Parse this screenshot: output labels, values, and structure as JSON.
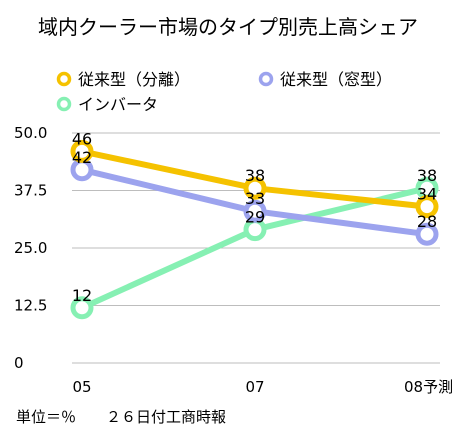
{
  "chart_data": {
    "type": "line",
    "title": "域内クーラー市場のタイプ別売上高シェア",
    "categories": [
      "05",
      "07",
      "08予測"
    ],
    "ylim": [
      0,
      50
    ],
    "yticks": [
      "0",
      "12.5",
      "25.0",
      "37.5",
      "50.0"
    ],
    "ytick_values": [
      0,
      12.5,
      25,
      37.5,
      50
    ],
    "grid": true,
    "legend_position": "top",
    "series": [
      {
        "name": "従来型（分離）",
        "color": "#f5c200",
        "values": [
          46,
          38,
          34
        ]
      },
      {
        "name": "従来型（窓型）",
        "color": "#9ca3ee",
        "values": [
          42,
          33,
          28
        ]
      },
      {
        "name": "インバータ",
        "color": "#86f0b3",
        "values": [
          12,
          29,
          38
        ]
      }
    ],
    "footer": "単位＝％　　２６日付工商時報"
  }
}
